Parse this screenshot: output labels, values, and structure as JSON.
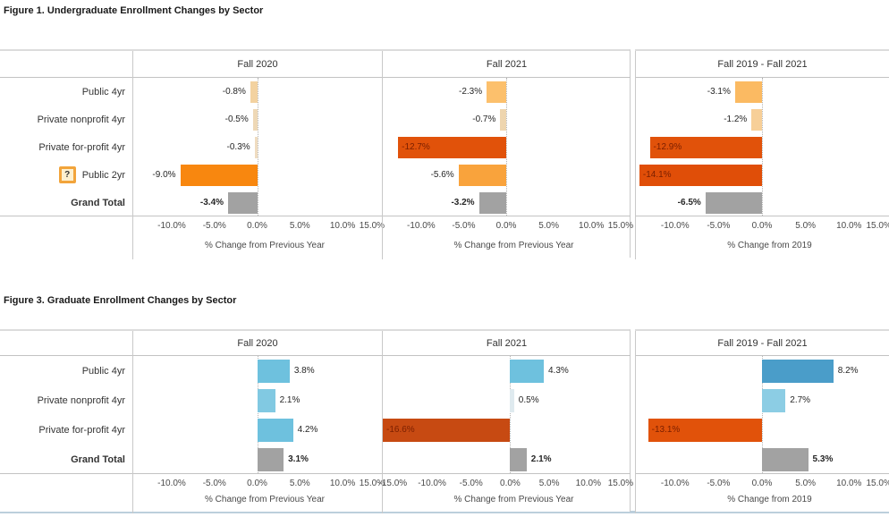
{
  "page": {
    "background": "#ffffff",
    "bottom_border_color": "#bccfdc"
  },
  "help_icon": {
    "glyph": "?",
    "figure_title": "Figure 1. Undergraduate Enrollment Changes by Sector",
    "row_label": "Public 2yr"
  },
  "chart_data": [
    {
      "type": "bar",
      "orientation": "horizontal",
      "title": "Figure 1. Undergraduate Enrollment Changes by Sector",
      "categories": [
        "Public 4yr",
        "Private nonprofit 4yr",
        "Private for-profit 4yr",
        "Public 2yr",
        "Grand Total"
      ],
      "total_row": "Grand Total",
      "legend": "none",
      "grid": false,
      "panels": [
        {
          "label": "Fall 2020",
          "xlabel": "% Change from Previous Year",
          "xlim": [
            -14.5,
            14.6
          ],
          "ticks": [
            -10,
            -5,
            0,
            5,
            10,
            15
          ],
          "values": [
            -0.8,
            -0.5,
            -0.3,
            -9.0,
            -3.4
          ],
          "colors": [
            "#f3d2a0",
            "#eed8b6",
            "#efdcc0",
            "#f8870f",
            "#a2a2a2"
          ]
        },
        {
          "label": "Fall 2021",
          "xlabel": "% Change from Previous Year",
          "xlim": [
            -14.5,
            14.6
          ],
          "ticks": [
            -10,
            -5,
            0,
            5,
            10,
            15
          ],
          "values": [
            -2.3,
            -0.7,
            -12.7,
            -5.6,
            -3.2
          ],
          "colors": [
            "#fcc06c",
            "#eed5ae",
            "#e1520a",
            "#f9a33c",
            "#a2a2a2"
          ]
        },
        {
          "label": "Fall 2019 - Fall 2021",
          "xlabel": "% Change from 2019",
          "xlim": [
            -14.5,
            14.6
          ],
          "ticks": [
            -10,
            -5,
            0,
            5,
            10,
            15
          ],
          "values": [
            -3.1,
            -1.2,
            -12.9,
            -14.1,
            -6.5
          ],
          "colors": [
            "#fbba62",
            "#f7cf98",
            "#e1520a",
            "#e04e08",
            "#a2a2a2"
          ]
        }
      ]
    },
    {
      "type": "bar",
      "orientation": "horizontal",
      "title": "Figure 3. Graduate Enrollment Changes by Sector",
      "categories": [
        "Public 4yr",
        "Private nonprofit 4yr",
        "Private for-profit 4yr",
        "Grand Total"
      ],
      "total_row": "Grand Total",
      "legend": "none",
      "grid": false,
      "panels": [
        {
          "label": "Fall 2020",
          "xlabel": "% Change from Previous Year",
          "xlim": [
            -14.5,
            14.6
          ],
          "ticks": [
            -10,
            -5,
            0,
            5,
            10,
            15
          ],
          "values": [
            3.8,
            2.1,
            4.2,
            3.1
          ],
          "colors": [
            "#6ec1de",
            "#81c9e2",
            "#6ec1de",
            "#a2a2a2"
          ]
        },
        {
          "label": "Fall 2021",
          "xlabel": "% Change from Previous Year",
          "xlim": [
            -16.3,
            15.4
          ],
          "ticks": [
            -15,
            -10,
            -5,
            0,
            5,
            10,
            15
          ],
          "values": [
            4.3,
            0.5,
            -16.6,
            2.1
          ],
          "colors": [
            "#6ec1de",
            "#dfeaef",
            "#c74a12",
            "#a2a2a2"
          ]
        },
        {
          "label": "Fall 2019 - Fall 2021",
          "xlabel": "% Change from 2019",
          "xlim": [
            -14.5,
            14.6
          ],
          "ticks": [
            -10,
            -5,
            0,
            5,
            10,
            15
          ],
          "values": [
            8.2,
            2.7,
            -13.1,
            5.3
          ],
          "colors": [
            "#4a9dc9",
            "#8ccde4",
            "#e1520a",
            "#a2a2a2"
          ]
        }
      ]
    }
  ]
}
